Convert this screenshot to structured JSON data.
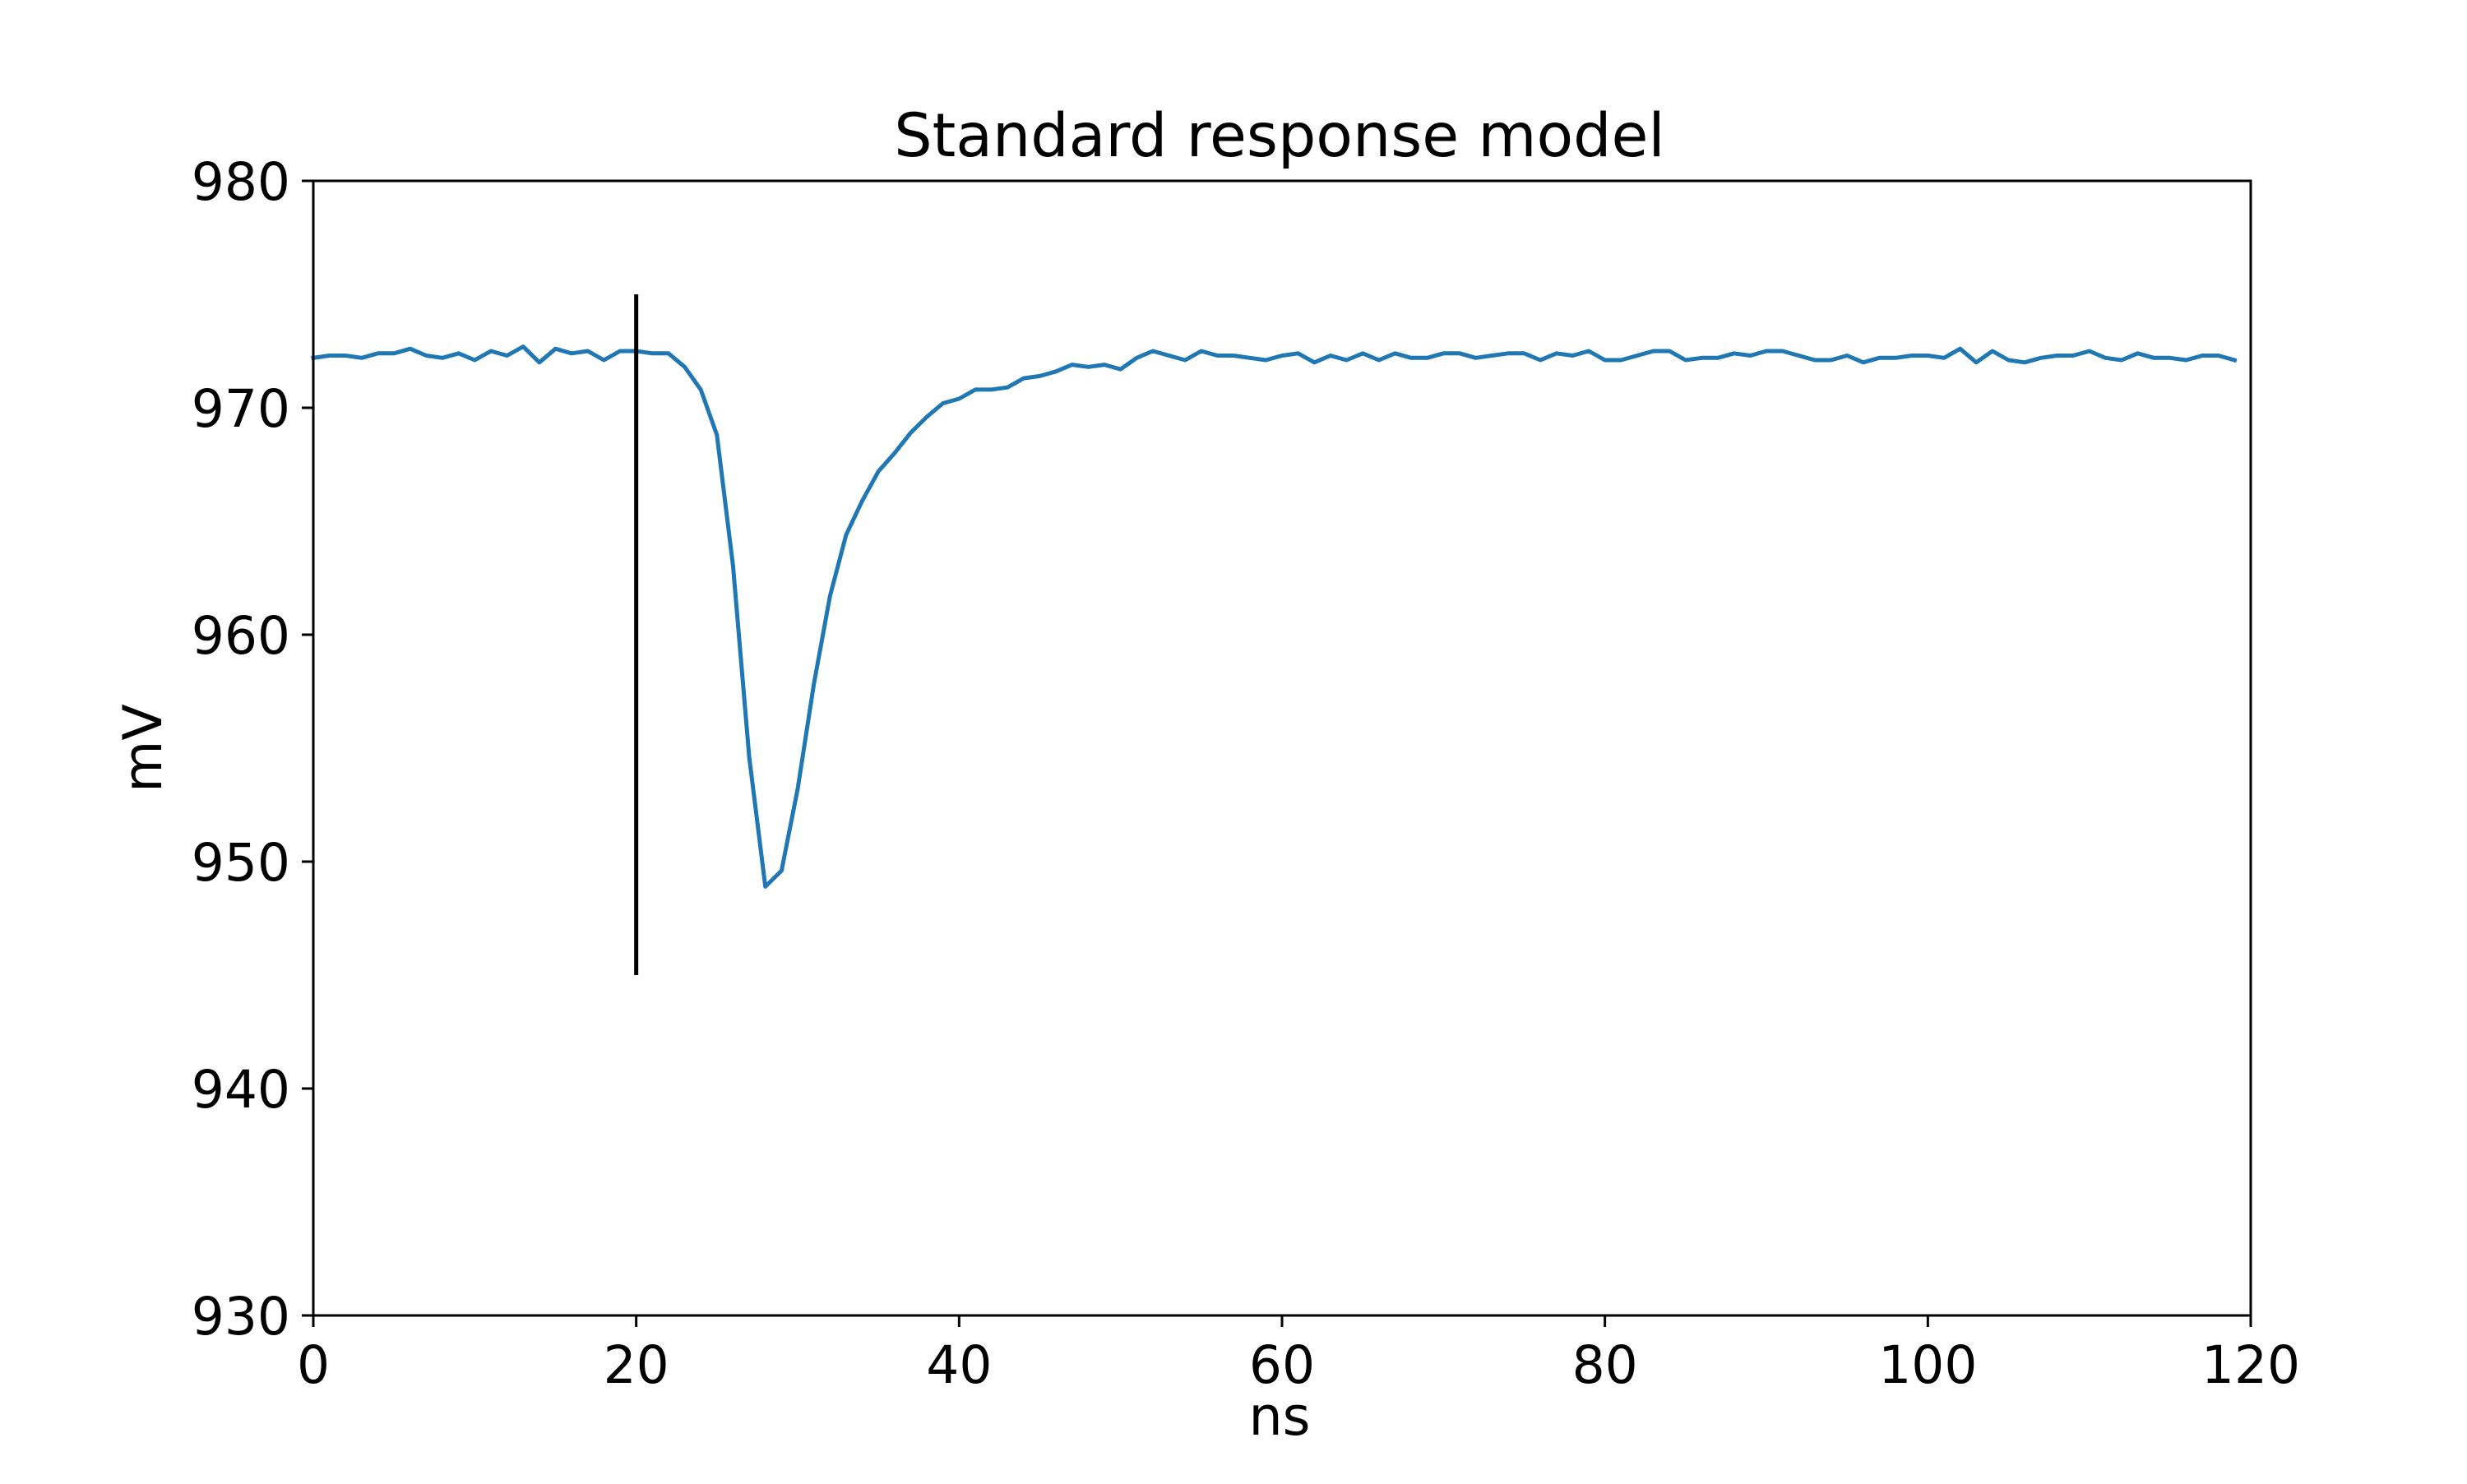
{
  "chart_data": {
    "type": "line",
    "title": "Standard response model",
    "xlabel": "ns",
    "ylabel": "mV",
    "xlim": [
      0,
      120
    ],
    "ylim": [
      930,
      980
    ],
    "xticks": [
      0,
      20,
      40,
      60,
      80,
      100,
      120
    ],
    "yticks": [
      930,
      940,
      950,
      960,
      970,
      980
    ],
    "xtick_labels": [
      "0",
      "20",
      "40",
      "60",
      "80",
      "100",
      "120"
    ],
    "ytick_labels": [
      "930",
      "940",
      "950",
      "960",
      "970",
      "980"
    ],
    "grid": false,
    "legend": "none",
    "series": [
      {
        "color": "#1f77b4",
        "x": [
          0,
          1,
          2,
          3,
          4,
          5,
          6,
          7,
          8,
          9,
          10,
          11,
          12,
          13,
          14,
          15,
          16,
          17,
          18,
          19,
          20,
          21,
          22,
          23,
          24,
          25,
          26,
          27,
          28,
          29,
          30,
          31,
          32,
          33,
          34,
          35,
          36,
          37,
          38,
          39,
          40,
          41,
          42,
          43,
          44,
          45,
          46,
          47,
          48,
          49,
          50,
          51,
          52,
          53,
          54,
          55,
          56,
          57,
          58,
          59,
          60,
          61,
          62,
          63,
          64,
          65,
          66,
          67,
          68,
          69,
          70,
          71,
          72,
          73,
          74,
          75,
          76,
          77,
          78,
          79,
          80,
          81,
          82,
          83,
          84,
          85,
          86,
          87,
          88,
          89,
          90,
          91,
          92,
          93,
          94,
          95,
          96,
          97,
          98,
          99,
          100,
          101,
          102,
          103,
          104,
          105,
          106,
          107,
          108,
          109,
          110,
          111,
          112,
          113,
          114,
          115,
          116,
          117,
          118,
          119
        ],
        "y": [
          972.2,
          972.3,
          972.3,
          972.2,
          972.4,
          972.4,
          972.6,
          972.3,
          972.2,
          972.4,
          972.1,
          972.5,
          972.3,
          972.7,
          972.0,
          972.6,
          972.4,
          972.5,
          972.1,
          972.5,
          972.5,
          972.4,
          972.4,
          971.8,
          970.8,
          968.8,
          963.0,
          954.6,
          948.9,
          949.6,
          953.2,
          957.8,
          961.7,
          964.4,
          965.9,
          967.2,
          968.0,
          968.9,
          969.6,
          970.2,
          970.4,
          970.8,
          970.8,
          970.9,
          971.3,
          971.4,
          971.6,
          971.9,
          971.8,
          971.9,
          971.7,
          972.2,
          972.5,
          972.3,
          972.1,
          972.5,
          972.3,
          972.3,
          972.2,
          972.1,
          972.3,
          972.4,
          972.0,
          972.3,
          972.1,
          972.4,
          972.1,
          972.4,
          972.2,
          972.2,
          972.4,
          972.4,
          972.2,
          972.3,
          972.4,
          972.4,
          972.1,
          972.4,
          972.3,
          972.5,
          972.1,
          972.1,
          972.3,
          972.5,
          972.5,
          972.1,
          972.2,
          972.2,
          972.4,
          972.3,
          972.5,
          972.5,
          972.3,
          972.1,
          972.1,
          972.3,
          972.0,
          972.2,
          972.2,
          972.3,
          972.3,
          972.2,
          972.6,
          972.0,
          972.5,
          972.1,
          972.0,
          972.2,
          972.3,
          972.3,
          972.5,
          972.2,
          972.1,
          972.4,
          972.2,
          972.2,
          972.1,
          972.3,
          972.3,
          972.1
        ]
      }
    ],
    "annotations": [
      {
        "type": "vline",
        "x": 20,
        "ymin": 945,
        "ymax": 975,
        "color": "#000000"
      }
    ]
  }
}
